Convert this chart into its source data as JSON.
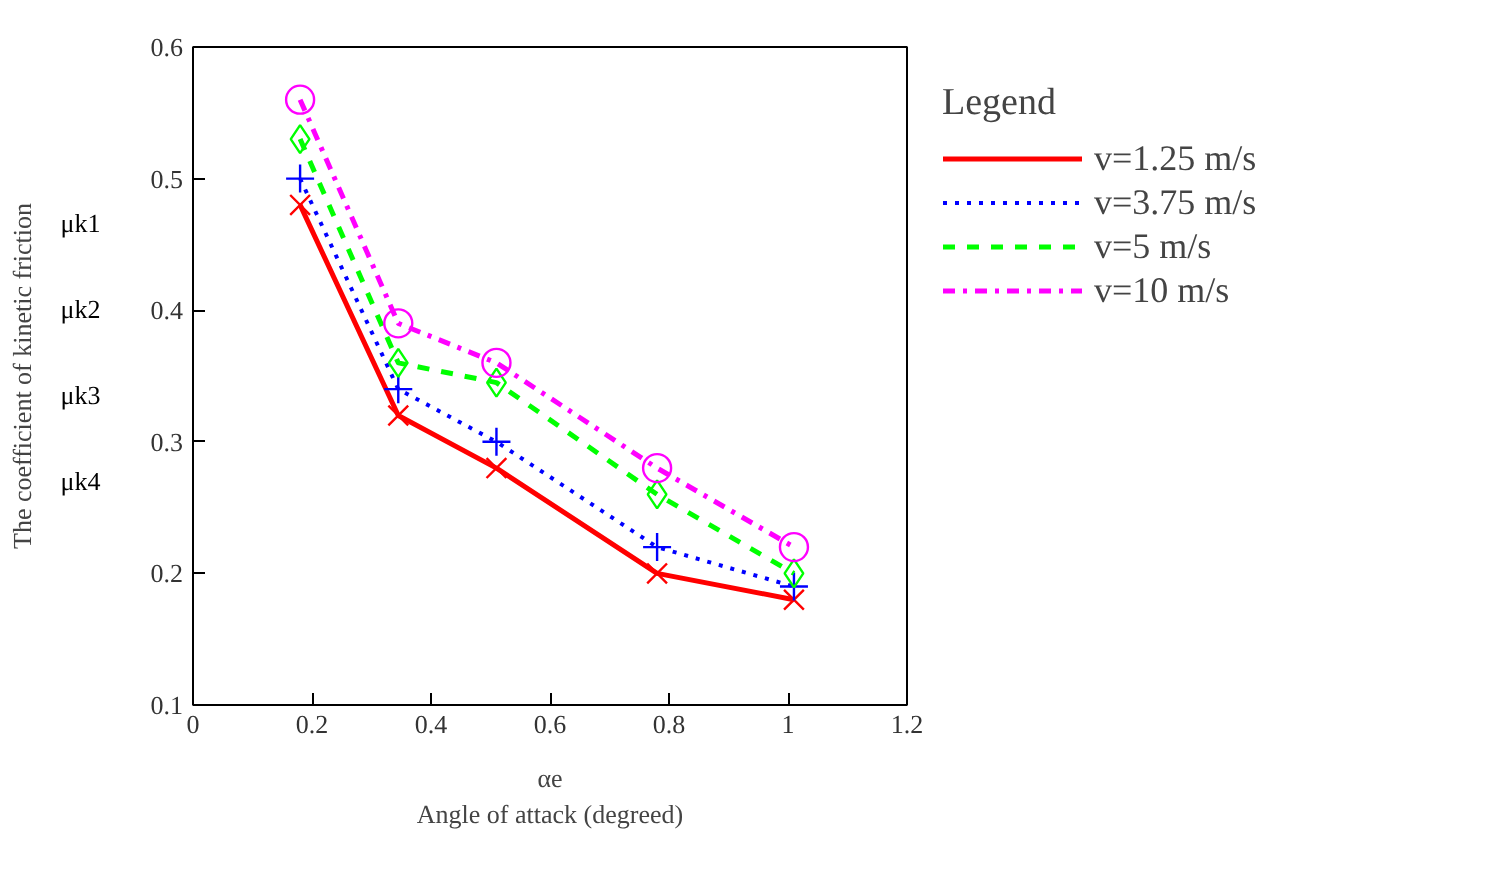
{
  "chart_data": {
    "type": "line",
    "xlabel": "Angle of attack (degreed)",
    "ylabel": "The coefficient of kinetic friction",
    "legend_title": "Legend",
    "legend": "right",
    "x": [
      0.18,
      0.345,
      0.51,
      0.78,
      1.01
    ],
    "series": [
      {
        "name": "v=1.25 m/s",
        "color": "#ff0000",
        "values": [
          0.48,
          0.32,
          0.28,
          0.2,
          0.18
        ],
        "marker": "cross",
        "line_style": "solid"
      },
      {
        "name": "v=3.75 m/s",
        "color": "#0000ff",
        "values": [
          0.5,
          0.34,
          0.3,
          0.22,
          0.19
        ],
        "marker": "plus",
        "line_style": "dotted"
      },
      {
        "name": "v=5 m/s",
        "color": "#00ff00",
        "values": [
          0.53,
          0.36,
          0.345,
          0.26,
          0.2
        ],
        "marker": "diamond",
        "line_style": "dashed"
      },
      {
        "name": "v=10 m/s",
        "color": "#ff00ff",
        "values": [
          0.56,
          0.39,
          0.36,
          0.28,
          0.22
        ],
        "marker": "circle",
        "line_style": "dashdot"
      }
    ],
    "xlim": [
      0,
      1.2
    ],
    "ylim": [
      0.1,
      0.6
    ],
    "xticks": [
      0,
      0.2,
      0.4,
      0.6,
      0.8,
      1,
      1.2
    ],
    "yticks": [
      0.1,
      0.2,
      0.3,
      0.4,
      0.5,
      0.6
    ],
    "grid": false,
    "annotations": [
      "αe",
      "μk1",
      "μk2",
      "μk3",
      "μk4"
    ]
  }
}
